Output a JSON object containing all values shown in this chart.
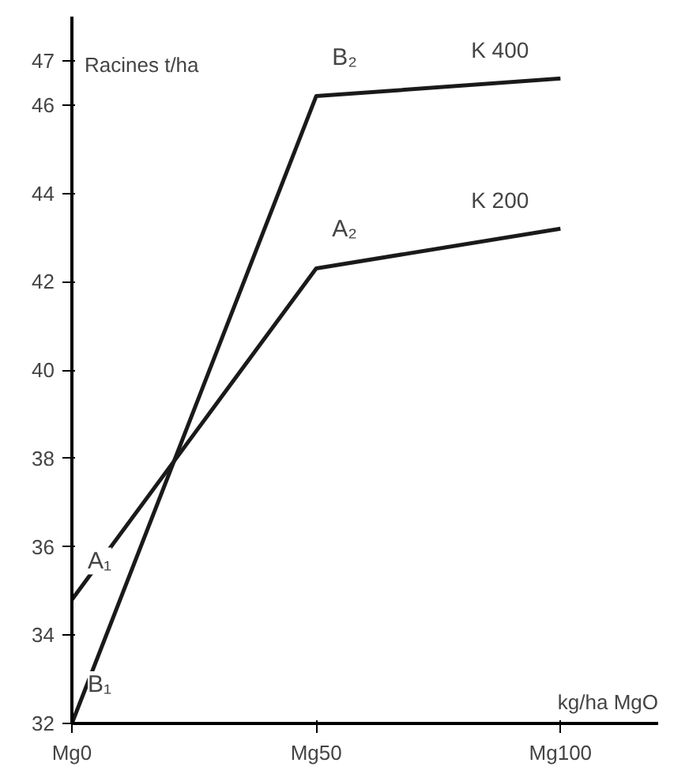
{
  "chart_data": {
    "type": "line",
    "ylabel": "Racines t/ha",
    "xlabel": "kg/ha MgO",
    "categories": [
      "Mg0",
      "Mg50",
      "Mg100"
    ],
    "series": [
      {
        "name": "K 400",
        "color": "#1a1a1a",
        "values": [
          32,
          46.2,
          46.6
        ]
      },
      {
        "name": "K 200",
        "color": "#1a1a1a",
        "values": [
          34.8,
          42.3,
          43.2
        ]
      }
    ],
    "ylim": [
      32,
      48
    ],
    "yticks": [
      32,
      34,
      36,
      38,
      40,
      42,
      44,
      46,
      47
    ],
    "annotations": [
      {
        "text": "A₁",
        "x": "Mg0",
        "y": 34.8
      },
      {
        "text": "A₂",
        "x": "Mg50",
        "y": 42.3
      },
      {
        "text": "B₁",
        "x": "Mg0",
        "y": 32
      },
      {
        "text": "B₂",
        "x": "Mg50",
        "y": 46.2
      }
    ],
    "grid": false,
    "legend": false,
    "marker": "none",
    "line_style": "solid"
  }
}
